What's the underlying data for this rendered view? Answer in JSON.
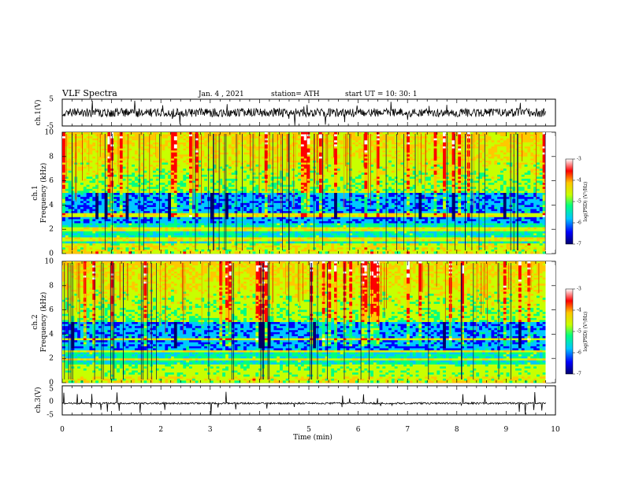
{
  "header": {
    "title": "VLF Spectra",
    "date": "Jan. 4 , 2021",
    "station": "station= ATH",
    "start": "start UT =   10: 30: 1"
  },
  "chart_data": [
    {
      "type": "line",
      "panel": "ch1-waveform",
      "ylabel": "ch.1(V)",
      "ylim": [
        -5,
        5
      ],
      "yticks": [
        "5",
        "-5"
      ],
      "xlim": [
        0,
        10
      ],
      "data_end": 9.8,
      "series": [
        {
          "baseline": 0,
          "noise_amplitude": 1.6,
          "color": "#000000"
        }
      ]
    },
    {
      "type": "heatmap",
      "panel": "ch1-spectrogram",
      "ylabel": "ch.1\nFrequency (kHz)",
      "ylim": [
        0,
        10
      ],
      "yticks": [
        "0",
        "2",
        "4",
        "6",
        "8",
        "10"
      ],
      "xlim": [
        0,
        10
      ],
      "data_end": 9.8,
      "colorbar": {
        "label": "log(PSD) (V²/Hz)",
        "range": [
          -7,
          -3
        ],
        "ticks": [
          "-3",
          "-4",
          "-5",
          "-6",
          "-7"
        ]
      }
    },
    {
      "type": "heatmap",
      "panel": "ch2-spectrogram",
      "ylabel": "ch.2\nFrequency (kHz)",
      "ylim": [
        0,
        10
      ],
      "yticks": [
        "0",
        "2",
        "4",
        "6",
        "8",
        "10"
      ],
      "xlim": [
        0,
        10
      ],
      "data_end": 9.8,
      "colorbar": {
        "label": "log(PSD) (V²/Hz)",
        "range": [
          -7,
          -3
        ],
        "ticks": [
          "-3",
          "-4",
          "-5",
          "-6",
          "-7"
        ]
      }
    },
    {
      "type": "line",
      "panel": "ch3-waveform",
      "ylabel": "ch.3(V)",
      "ylim": [
        -5,
        5
      ],
      "yticks": [
        "5",
        "0",
        "-5"
      ],
      "xlim": [
        0,
        10
      ],
      "data_end": 9.8,
      "series": [
        {
          "baseline": -1,
          "noise_amplitude": 0.3,
          "color": "#000000"
        }
      ]
    }
  ],
  "xaxis": {
    "label": "Time (min)",
    "ticks": [
      "0",
      "1",
      "2",
      "3",
      "4",
      "5",
      "6",
      "7",
      "8",
      "9",
      "10"
    ]
  },
  "colors": {
    "spectrum": [
      "#00006e",
      "#0000ff",
      "#00c8ff",
      "#00ff80",
      "#c8ff00",
      "#ffc800",
      "#ff0000",
      "#ffffff"
    ]
  }
}
